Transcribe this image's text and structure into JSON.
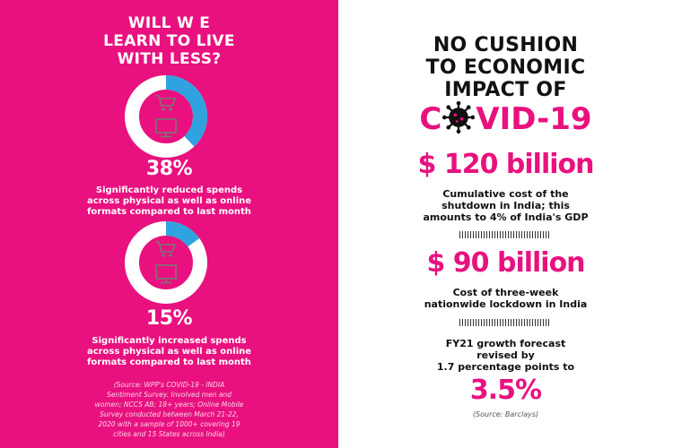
{
  "left": {
    "title_line1": "WILL W E",
    "title_line2": "LEARN TO LIVE",
    "title_line3": "WITH LESS?",
    "stats": [
      {
        "percent": "38%",
        "value": 0.38,
        "description_lines": [
          "Significantly reduced spends",
          "across physical as well as online",
          "formats compared to last month"
        ],
        "icons": [
          "shopping-cart-icon",
          "monitor-icon"
        ]
      },
      {
        "percent": "15%",
        "value": 0.15,
        "description_lines": [
          "Significantly increased spends",
          "across physical as well as online",
          "formats compared to last month"
        ],
        "icons": [
          "shopping-cart-icon",
          "monitor-icon"
        ]
      }
    ],
    "source_lines": [
      "(Source: WPP's COVID-19 - INDIA",
      "Sentiment Survey. Involved men and",
      "women; NCCS AB; 18+ years; Online Mobile",
      "Survey conducted between March 21-22,",
      "2020 with a sample of 1000+ covering 19",
      "cities and 15 States across India)"
    ]
  },
  "right": {
    "title_line1": "NO CUSHION",
    "title_line2": "TO ECONOMIC",
    "title_line3": "IMPACT OF",
    "covid_prefix": "C",
    "covid_suffix": "VID-19",
    "figures": [
      {
        "value": "$ 120 billion",
        "description_lines": [
          "Cumulative cost of the",
          "shutdown in India; this",
          "amounts to 4% of India's GDP"
        ]
      },
      {
        "value": "$ 90 billion",
        "description_lines": [
          "Cost of three-week",
          "nationwide lockdown in India"
        ]
      },
      {
        "value": "3.5%",
        "description_lines": [
          "FY21 growth forecast",
          "revised by",
          "1.7 percentage points to"
        ]
      }
    ],
    "source": "(Source: Barclays)"
  },
  "colors": {
    "brand_pink": "#e8117f",
    "donut_fill": "#2ea3e0",
    "white": "#ffffff",
    "text_dark": "#111111"
  }
}
